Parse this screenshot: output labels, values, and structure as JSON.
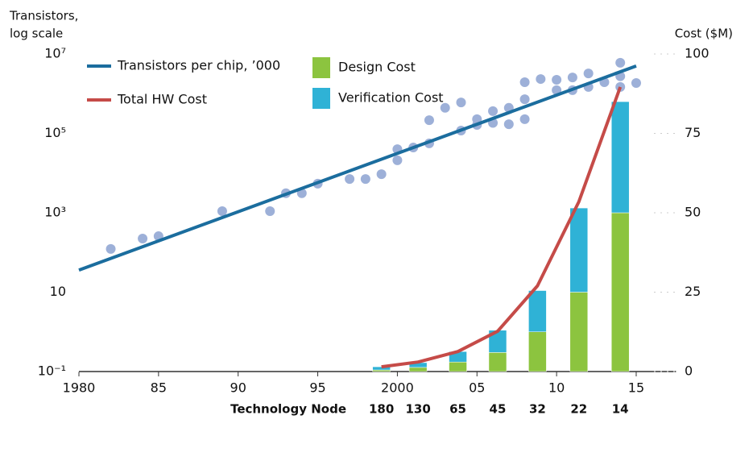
{
  "chart_data": {
    "type": "combo",
    "y_label": [
      "Transistors,",
      "log scale"
    ],
    "y2_label": "Cost ($M)",
    "node_label": "Technology Node",
    "nodes": [
      180,
      130,
      65,
      45,
      32,
      22,
      14
    ],
    "xlim": [
      1980,
      2017.5
    ],
    "xticks": [
      1980,
      {
        "value": 1985,
        "label": "85"
      },
      {
        "value": 1990,
        "label": "90"
      },
      {
        "value": 1995,
        "label": "95"
      },
      2000,
      {
        "value": 2005,
        "label": "05"
      },
      {
        "value": 2010,
        "label": "10"
      },
      {
        "value": 2015,
        "label": "15"
      }
    ],
    "ylim": [
      0.1,
      10000000
    ],
    "log_y": true,
    "yticks": [
      {
        "value": 0.1,
        "label": "10⁻¹"
      },
      10,
      {
        "value": 1000,
        "label": "10³"
      },
      {
        "value": 100000,
        "label": "10⁵"
      },
      {
        "value": 10000000,
        "label": "10⁷"
      }
    ],
    "y2lim": [
      0,
      100
    ],
    "y2ticks": [
      0,
      25,
      50,
      75,
      100
    ],
    "points": {
      "color": "#9db0d8",
      "x": [
        1982,
        1984,
        1985,
        1989,
        1992,
        1993,
        1994,
        1995,
        1997,
        1998,
        1999,
        2000,
        2000,
        2001,
        2002,
        2002,
        2003,
        2004,
        2004,
        2005,
        2005,
        2006,
        2006,
        2007,
        2007,
        2008,
        2008,
        2008,
        2009,
        2010,
        2010,
        2011,
        2011,
        2012,
        2012,
        2013,
        2014,
        2014,
        2014,
        2015
      ],
      "values": [
        123,
        224,
        257,
        1100,
        1100,
        3100,
        3100,
        5400,
        7100,
        7100,
        9400,
        21000,
        40000,
        44000,
        56000,
        215000,
        440000,
        600000,
        118000,
        163000,
        228000,
        184000,
        363000,
        440000,
        170000,
        228000,
        725000,
        1950000,
        2340000,
        2240000,
        1230000,
        1230000,
        2560000,
        3240000,
        1480000,
        1950000,
        6000000,
        2750000,
        1480000,
        1860000
      ]
    },
    "series": [
      {
        "name": "Transistors per chip, ’000",
        "type": "line",
        "color": "#1b6d9e",
        "x": [
          1980,
          2015
        ],
        "values": [
          36,
          5000000
        ]
      },
      {
        "name": "Total HW Cost",
        "type": "line",
        "axis": "y2",
        "color": "#c54b48",
        "x": [
          1999,
          2001.3,
          2003.8,
          2006.3,
          2008.8,
          2011.4,
          2014
        ],
        "values": [
          1.5,
          3,
          6.3,
          12.7,
          27,
          53.5,
          89.6
        ]
      },
      {
        "name": "Design Cost",
        "type": "bar",
        "axis": "y2",
        "color": "#8cc43f",
        "x": [
          1999,
          2001.3,
          2003.8,
          2006.3,
          2008.8,
          2011.4,
          2014
        ],
        "values": [
          0.5,
          1.3,
          3,
          6,
          12.5,
          25,
          50
        ]
      },
      {
        "name": "Verification Cost",
        "type": "bar",
        "axis": "y2",
        "color": "#2fb2d6",
        "x": [
          1999,
          2001.3,
          2003.8,
          2006.3,
          2008.8,
          2011.4,
          2014
        ],
        "values": [
          1,
          1.5,
          3.3,
          7,
          13,
          26.5,
          35
        ]
      }
    ]
  }
}
